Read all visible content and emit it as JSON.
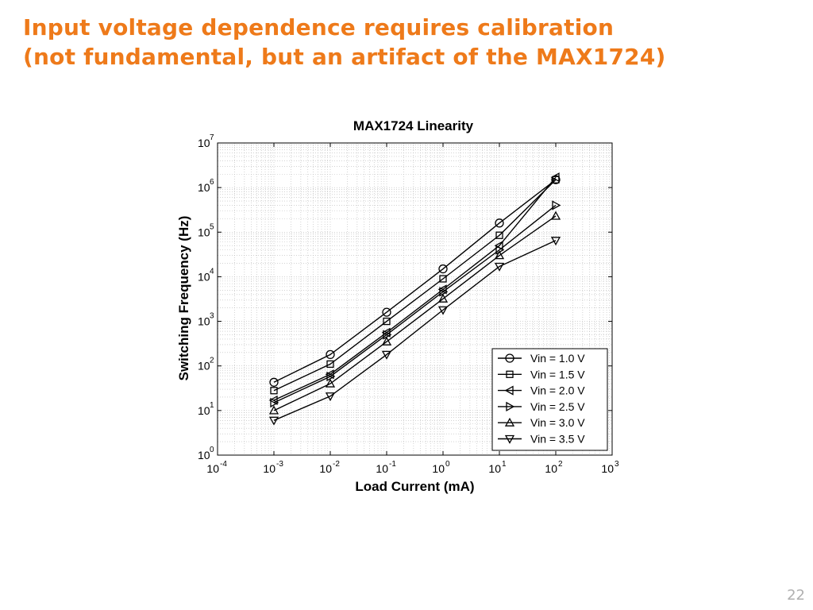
{
  "slide": {
    "title_line1": "Input voltage dependence requires calibration",
    "title_line2": "(not fundamental, but an artifact of the MAX1724)",
    "page_number": "22"
  },
  "chart_data": {
    "type": "line",
    "title": "MAX1724 Linearity",
    "xlabel": "Load Current (mA)",
    "ylabel": "Switching Frequency (Hz)",
    "xscale": "log",
    "yscale": "log",
    "xlim": [
      0.0001,
      1000
    ],
    "ylim": [
      1,
      10000000
    ],
    "grid": true,
    "legend_position": "lower-right",
    "x_ticks": [
      {
        "base": "10",
        "exp": "-4"
      },
      {
        "base": "10",
        "exp": "-3"
      },
      {
        "base": "10",
        "exp": "-2"
      },
      {
        "base": "10",
        "exp": "-1"
      },
      {
        "base": "10",
        "exp": "0"
      },
      {
        "base": "10",
        "exp": "1"
      },
      {
        "base": "10",
        "exp": "2"
      },
      {
        "base": "10",
        "exp": "3"
      }
    ],
    "y_ticks": [
      {
        "base": "10",
        "exp": "0"
      },
      {
        "base": "10",
        "exp": "1"
      },
      {
        "base": "10",
        "exp": "2"
      },
      {
        "base": "10",
        "exp": "3"
      },
      {
        "base": "10",
        "exp": "4"
      },
      {
        "base": "10",
        "exp": "5"
      },
      {
        "base": "10",
        "exp": "6"
      },
      {
        "base": "10",
        "exp": "7"
      }
    ],
    "x": [
      0.001,
      0.01,
      0.1,
      1,
      10,
      100
    ],
    "series": [
      {
        "name": "Vin = 1.0 V",
        "marker": "circle",
        "values": [
          43,
          180,
          1600,
          15000,
          160000,
          1500000
        ]
      },
      {
        "name": "Vin = 1.5 V",
        "marker": "square",
        "values": [
          28,
          110,
          1000,
          9000,
          85000,
          1500000
        ]
      },
      {
        "name": "Vin = 2.0 V",
        "marker": "triangle-left",
        "values": [
          17,
          65,
          560,
          5200,
          50000,
          1700000
        ]
      },
      {
        "name": "Vin = 2.5 V",
        "marker": "triangle-right",
        "values": [
          15,
          58,
          500,
          4600,
          40000,
          400000
        ]
      },
      {
        "name": "Vin = 3.0 V",
        "marker": "triangle-up",
        "values": [
          10,
          40,
          350,
          3200,
          30000,
          230000
        ]
      },
      {
        "name": "Vin = 3.5 V",
        "marker": "triangle-down",
        "values": [
          6,
          21,
          180,
          1800,
          17000,
          65000
        ]
      }
    ]
  }
}
